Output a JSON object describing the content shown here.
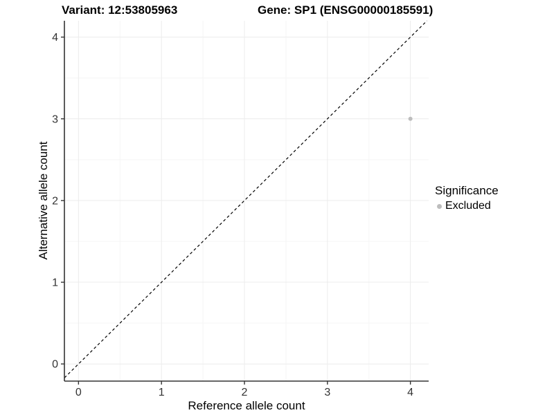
{
  "chart_data": {
    "type": "scatter",
    "title_left": "Variant: 12:53805963",
    "title_right": "Gene: SP1 (ENSG00000185591)",
    "xlabel": "Reference allele count",
    "ylabel": "Alternative allele count",
    "x_ticks": [
      0,
      1,
      2,
      3,
      4
    ],
    "y_ticks": [
      0,
      1,
      2,
      3,
      4
    ],
    "x_minor": [
      0.5,
      1.5,
      2.5,
      3.5
    ],
    "y_minor": [
      0.5,
      1.5,
      2.5,
      3.5
    ],
    "xlim": [
      -0.17,
      4.22
    ],
    "ylim": [
      -0.21,
      4.2
    ],
    "grid": true,
    "points": [
      {
        "x": 4,
        "y": 3,
        "series": "Excluded"
      }
    ],
    "identity_line": {
      "slope": 1,
      "intercept": 0,
      "style": "dashed",
      "color": "#000000"
    },
    "legend": {
      "title": "Significance",
      "position": "right",
      "entries": [
        {
          "label": "Excluded",
          "color": "#bdbdbd"
        }
      ]
    },
    "colors": {
      "point_excluded": "#bdbdbd",
      "grid_major": "#ececec",
      "grid_minor": "#f5f5f5",
      "axis": "#333333",
      "tick_label": "#333333"
    }
  }
}
